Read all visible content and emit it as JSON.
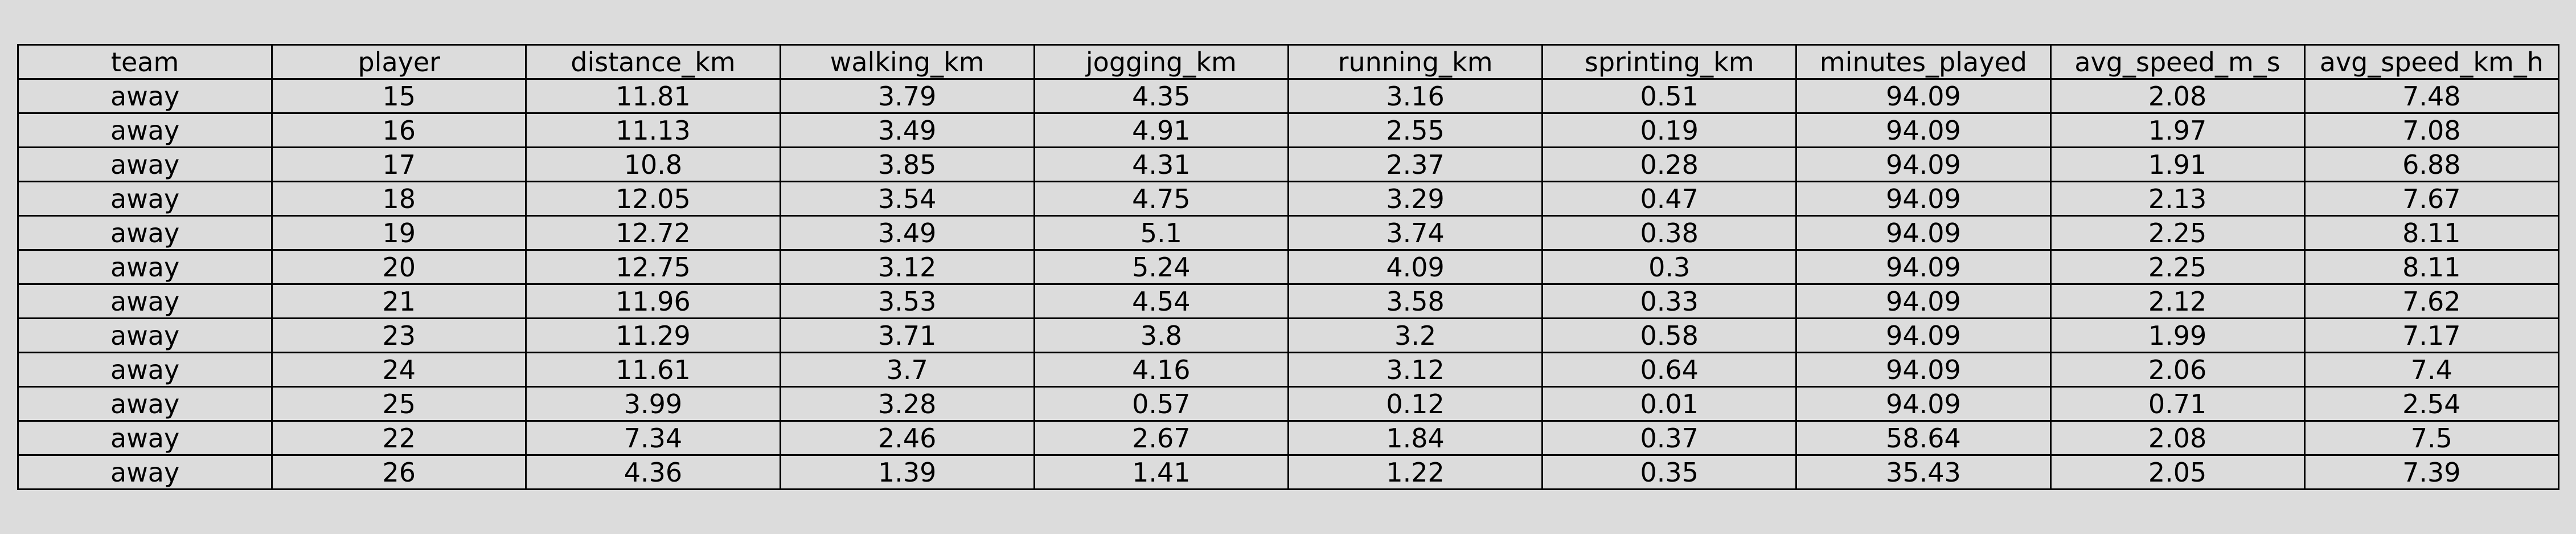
{
  "chart_data": {
    "type": "table",
    "columns": [
      "team",
      "player",
      "distance_km",
      "walking_km",
      "jogging_km",
      "running_km",
      "sprinting_km",
      "minutes_played",
      "avg_speed_m_s",
      "avg_speed_km_h"
    ],
    "rows": [
      [
        "away",
        "15",
        "11.81",
        "3.79",
        "4.35",
        "3.16",
        "0.51",
        "94.09",
        "2.08",
        "7.48"
      ],
      [
        "away",
        "16",
        "11.13",
        "3.49",
        "4.91",
        "2.55",
        "0.19",
        "94.09",
        "1.97",
        "7.08"
      ],
      [
        "away",
        "17",
        "10.8",
        "3.85",
        "4.31",
        "2.37",
        "0.28",
        "94.09",
        "1.91",
        "6.88"
      ],
      [
        "away",
        "18",
        "12.05",
        "3.54",
        "4.75",
        "3.29",
        "0.47",
        "94.09",
        "2.13",
        "7.67"
      ],
      [
        "away",
        "19",
        "12.72",
        "3.49",
        "5.1",
        "3.74",
        "0.38",
        "94.09",
        "2.25",
        "8.11"
      ],
      [
        "away",
        "20",
        "12.75",
        "3.12",
        "5.24",
        "4.09",
        "0.3",
        "94.09",
        "2.25",
        "8.11"
      ],
      [
        "away",
        "21",
        "11.96",
        "3.53",
        "4.54",
        "3.58",
        "0.33",
        "94.09",
        "2.12",
        "7.62"
      ],
      [
        "away",
        "23",
        "11.29",
        "3.71",
        "3.8",
        "3.2",
        "0.58",
        "94.09",
        "1.99",
        "7.17"
      ],
      [
        "away",
        "24",
        "11.61",
        "3.7",
        "4.16",
        "3.12",
        "0.64",
        "94.09",
        "2.06",
        "7.4"
      ],
      [
        "away",
        "25",
        "3.99",
        "3.28",
        "0.57",
        "0.12",
        "0.01",
        "94.09",
        "0.71",
        "2.54"
      ],
      [
        "away",
        "22",
        "7.34",
        "2.46",
        "2.67",
        "1.84",
        "0.37",
        "58.64",
        "2.08",
        "7.5"
      ],
      [
        "away",
        "26",
        "4.36",
        "1.39",
        "1.41",
        "1.22",
        "0.35",
        "35.43",
        "2.05",
        "7.39"
      ]
    ]
  }
}
